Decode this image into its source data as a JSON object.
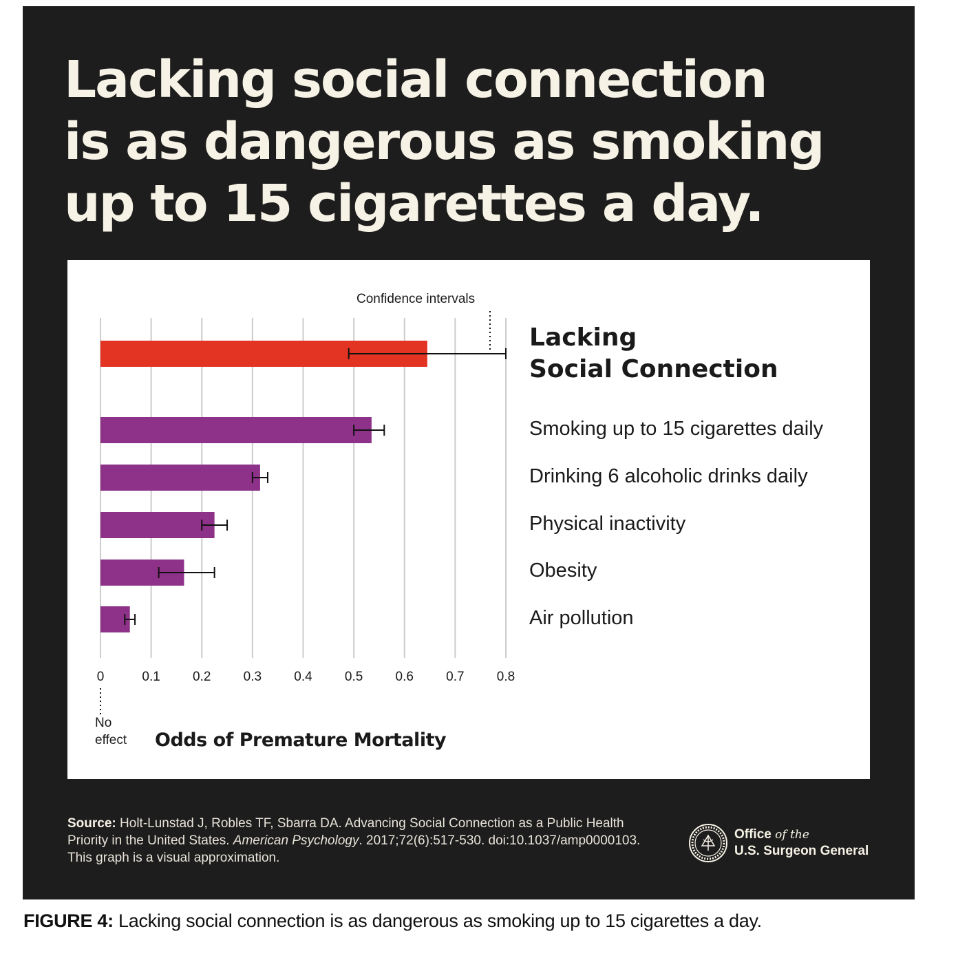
{
  "headline": [
    "Lacking social connection",
    "is as dangerous as smoking",
    "up to 15 cigarettes a day."
  ],
  "chart_data": {
    "type": "bar",
    "orientation": "horizontal",
    "title": "",
    "xlabel": "Odds of Premature Mortality",
    "xlim": [
      0,
      0.8
    ],
    "xticks": [
      "0",
      "0.1",
      "0.2",
      "0.3",
      "0.4",
      "0.5",
      "0.6",
      "0.7",
      "0.8"
    ],
    "grid": true,
    "categories": [
      "Lacking Social Connection",
      "Smoking up to 15 cigarettes daily",
      "Drinking 6 alcoholic drinks daily",
      "Physical inactivity",
      "Obesity",
      "Air pollution"
    ],
    "values": [
      0.645,
      0.535,
      0.315,
      0.225,
      0.165,
      0.058
    ],
    "ci_low": [
      0.49,
      0.5,
      0.3,
      0.2,
      0.115,
      0.048
    ],
    "ci_high": [
      0.8,
      0.56,
      0.33,
      0.25,
      0.225,
      0.068
    ],
    "colors": [
      "#e23323",
      "#8e3189",
      "#8e3189",
      "#8e3189",
      "#8e3189",
      "#8e3189"
    ],
    "annotations": {
      "confidence": "Confidence intervals",
      "no_effect": [
        "No",
        "effect"
      ]
    },
    "label_lines": [
      "Lacking",
      "Social Connection"
    ]
  },
  "source": {
    "label": "Source:",
    "pre": " Holt-Lunstad J, Robles TF, Sbarra DA. Advancing Social Connection as a Public Health Priority in the United States. ",
    "journal": "American Psychology",
    "post": ". 2017;72(6):517-530. doi:10.1037/amp0000103. This graph is a visual approximation."
  },
  "org": {
    "office": "Office",
    "ofthe": "of the",
    "name": "U.S. Surgeon General"
  },
  "caption": {
    "label": "FIGURE 4:",
    "text": " Lacking social connection is as dangerous as smoking up to 15 cigarettes a day."
  },
  "palette": {
    "poster_bg": "#1e1d1d",
    "headline": "#f6f2e6",
    "accent": "#e23323",
    "purple": "#8e3189",
    "grid": "#cccccc"
  }
}
